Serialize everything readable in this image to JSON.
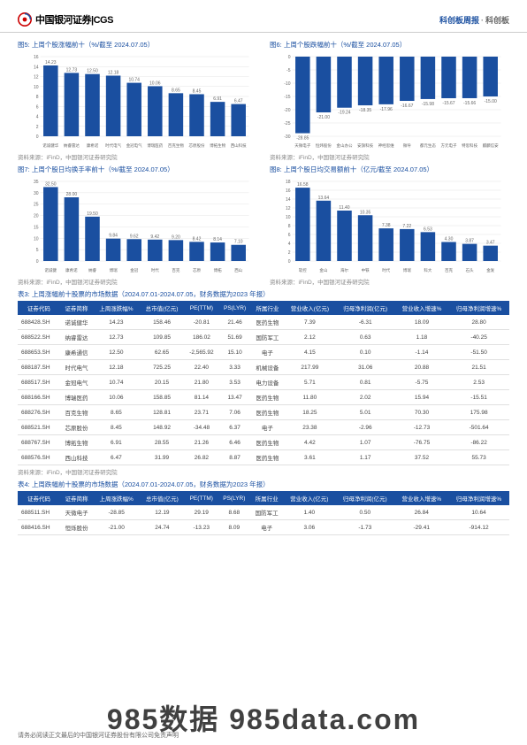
{
  "header": {
    "logo_text": "中国银河证券|CGS",
    "right_a": "科创板周报",
    "right_b": "科创板"
  },
  "chart5": {
    "title": "图5: 上周个股涨幅前十（%/截至 2024.07.05）",
    "type": "bar",
    "categories": [
      "诺诚健华",
      "纳睿雷达",
      "康希诺",
      "时代电气",
      "金冠电气",
      "博瑞医药",
      "百克生物",
      "芯原股份",
      "博拓生物",
      "西山科技"
    ],
    "values": [
      14.23,
      12.73,
      12.5,
      12.18,
      10.74,
      10.06,
      8.65,
      8.45,
      6.91,
      6.47
    ],
    "ylim": [
      0,
      16
    ],
    "ytick_step": 2,
    "bar_color": "#1a4fa0",
    "source": "资料来源：iFinD，中国银河证券研究院"
  },
  "chart6": {
    "title": "图6: 上周个股跌幅前十（%/截至 2024.07.05）",
    "type": "bar",
    "categories": [
      "天微电子",
      "恒炜股份",
      "金山办公",
      "安旗科技",
      "神经思维",
      "微导",
      "都元生态",
      "方元电子",
      "特思科技",
      "麒麟信安"
    ],
    "values": [
      -28.85,
      -21.0,
      -19.24,
      -18.35,
      -17.96,
      -16.67,
      -15.98,
      -15.67,
      -15.66,
      -15.0
    ],
    "ylim": [
      -30,
      0
    ],
    "ytick_step": 5,
    "bar_color": "#1a4fa0",
    "source": "资料来源：iFinD，中国银河证券研究院"
  },
  "chart7": {
    "title": "图7: 上周个股日均换手率前十（%/截至 2024.07.05）",
    "type": "bar",
    "categories": [
      "诺诚健",
      "康希诺",
      "纳睿",
      "博瑞",
      "金冠",
      "时代",
      "百克",
      "芯原",
      "博拓",
      "西山"
    ],
    "values": [
      32.5,
      28.0,
      19.5,
      9.84,
      9.62,
      9.42,
      9.2,
      8.42,
      8.14,
      7.1
    ],
    "ylim": [
      0,
      35
    ],
    "ytick_step": 5,
    "bar_color": "#1a4fa0",
    "source": "资料来源：iFinD，中国银河证券研究院"
  },
  "chart8": {
    "title": "图8: 上周个股日均交易额前十（亿元/截至 2024.07.05）",
    "type": "bar",
    "categories": [
      "软控",
      "金山",
      "海尔",
      "中铁",
      "时代",
      "博瑞",
      "科大",
      "百克",
      "石头",
      "金发"
    ],
    "values": [
      16.58,
      13.64,
      11.4,
      10.35,
      7.38,
      7.22,
      6.53,
      4.3,
      3.87,
      3.47
    ],
    "ylim": [
      0,
      18
    ],
    "ytick_step": 2,
    "bar_color": "#1a4fa0",
    "source": "资料来源：iFinD，中国银河证券研究院"
  },
  "table3": {
    "title": "表3:  上周涨幅前十股票的市场数据（2024.07.01-2024.07.05，财务数据为2023 年报）",
    "columns": [
      "证券代码",
      "证券简称",
      "上周涨跌幅%",
      "总市值(亿元)",
      "PE(TTM)",
      "PS(LYR)",
      "所属行业",
      "营业收入(亿元)",
      "归母净利润(亿元)",
      "营业收入增速%",
      "归母净利润增速%"
    ],
    "rows": [
      [
        "688428.SH",
        "诺诚健华",
        "14.23",
        "158.46",
        "-20.81",
        "21.46",
        "医药生物",
        "7.39",
        "-6.31",
        "18.09",
        "28.80"
      ],
      [
        "688522.SH",
        "纳睿雷达",
        "12.73",
        "109.85",
        "186.02",
        "51.69",
        "国防军工",
        "2.12",
        "0.63",
        "1.18",
        "-40.25"
      ],
      [
        "688653.SH",
        "康希通信",
        "12.50",
        "62.65",
        "-2,565.92",
        "15.10",
        "电子",
        "4.15",
        "0.10",
        "-1.14",
        "-51.50"
      ],
      [
        "688187.SH",
        "时代电气",
        "12.18",
        "725.25",
        "22.40",
        "3.33",
        "机械设备",
        "217.99",
        "31.06",
        "20.88",
        "21.51"
      ],
      [
        "688517.SH",
        "金冠电气",
        "10.74",
        "20.15",
        "21.80",
        "3.53",
        "电力设备",
        "5.71",
        "0.81",
        "-5.75",
        "2.53"
      ],
      [
        "688166.SH",
        "博瑞医药",
        "10.06",
        "158.85",
        "81.14",
        "13.47",
        "医药生物",
        "11.80",
        "2.02",
        "15.94",
        "-15.51"
      ],
      [
        "688276.SH",
        "百克生物",
        "8.65",
        "128.81",
        "23.71",
        "7.06",
        "医药生物",
        "18.25",
        "5.01",
        "70.30",
        "175.98"
      ],
      [
        "688521.SH",
        "芯原股份",
        "8.45",
        "148.92",
        "-34.48",
        "6.37",
        "电子",
        "23.38",
        "-2.96",
        "-12.73",
        "-501.64"
      ],
      [
        "688767.SH",
        "博拓生物",
        "6.91",
        "28.55",
        "21.26",
        "6.46",
        "医药生物",
        "4.42",
        "1.07",
        "-76.75",
        "-86.22"
      ],
      [
        "688576.SH",
        "西山科技",
        "6.47",
        "31.99",
        "26.82",
        "8.87",
        "医药生物",
        "3.61",
        "1.17",
        "37.52",
        "55.73"
      ]
    ],
    "source": "资料来源：iFinD，中国银河证券研究院"
  },
  "table4": {
    "title": "表4:  上周跌幅前十股票的市场数据（2024.07.01-2024.07.05，财务数据为2023 年报）",
    "columns": [
      "证券代码",
      "证券简称",
      "上周涨跌幅%",
      "总市值(亿元)",
      "PE(TTM)",
      "PS(LYR)",
      "所属行业",
      "营业收入(亿元)",
      "归母净利润(亿元)",
      "营业收入增速%",
      "归母净利润增速%"
    ],
    "rows": [
      [
        "688511.SH",
        "天微电子",
        "-28.85",
        "12.19",
        "29.19",
        "8.68",
        "国防军工",
        "1.40",
        "0.50",
        "26.84",
        "10.64"
      ],
      [
        "688416.SH",
        "恒烁股份",
        "-21.00",
        "24.74",
        "-13.23",
        "8.09",
        "电子",
        "3.06",
        "-1.73",
        "-29.41",
        "-914.12"
      ]
    ]
  },
  "footer": "请务必阅读正文最后的中国银河证券股份有限公司免责声明",
  "watermark": "985数据 985data.com"
}
